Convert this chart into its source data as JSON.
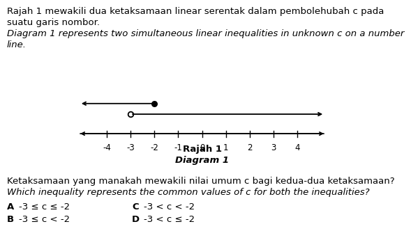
{
  "title_line1": "Rajah 1 mewakili dua ketaksamaan linear serentak dalam pembolehubah c pada",
  "title_line2": "suatu garis nombor.",
  "title_line3_italic": "Diagram 1 represents two simultaneous linear inequalities in unknown c on a number",
  "title_line4_italic": "line.",
  "diagram_label_bold": "Rajah 1",
  "diagram_label_italic": "Diagram 1",
  "tick_positions": [
    -4,
    -3,
    -2,
    -1,
    0,
    1,
    2,
    3,
    4
  ],
  "question_line1": "Ketaksamaan yang manakah mewakili nilai umum c bagi kedua-dua ketaksamaan?",
  "question_line2_italic": "Which inequality represents the common values of c for both the inequalities?",
  "optionA_label": "A",
  "optionA_text": "-3 ≤ c ≤ -2",
  "optionC_label": "C",
  "optionC_text": "-3 < c < -2",
  "optionB_label": "B",
  "optionB_text": "-3 ≤ c < -2",
  "optionD_label": "D",
  "optionD_text": "-3 < c ≤ -2",
  "bg_color": "#ffffff",
  "line_color": "#000000"
}
